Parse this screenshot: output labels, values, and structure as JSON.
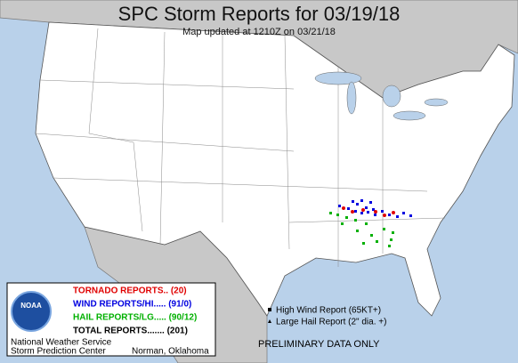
{
  "header": {
    "title": "SPC Storm Reports for 03/19/18",
    "subtitle": "Map updated at 1210Z on 03/21/18"
  },
  "legend": {
    "logo": "NOAA",
    "items": [
      {
        "label": "TORNADO REPORTS.. (20)",
        "color": "#e00000"
      },
      {
        "label": "WIND REPORTS/HI..... (91/0)",
        "color": "#0000e0"
      },
      {
        "label": "HAIL REPORTS/LG..... (90/12)",
        "color": "#00b000"
      },
      {
        "label": "TOTAL REPORTS....... (201)",
        "color": "#000000"
      }
    ],
    "office": [
      "National Weather Service",
      "Storm Prediction Center"
    ],
    "location": "Norman, Oklahoma"
  },
  "key": [
    "High Wind Report (65KT+)",
    "Large Hail Report (2\" dia. +)"
  ],
  "notice": "PRELIMINARY DATA ONLY"
}
